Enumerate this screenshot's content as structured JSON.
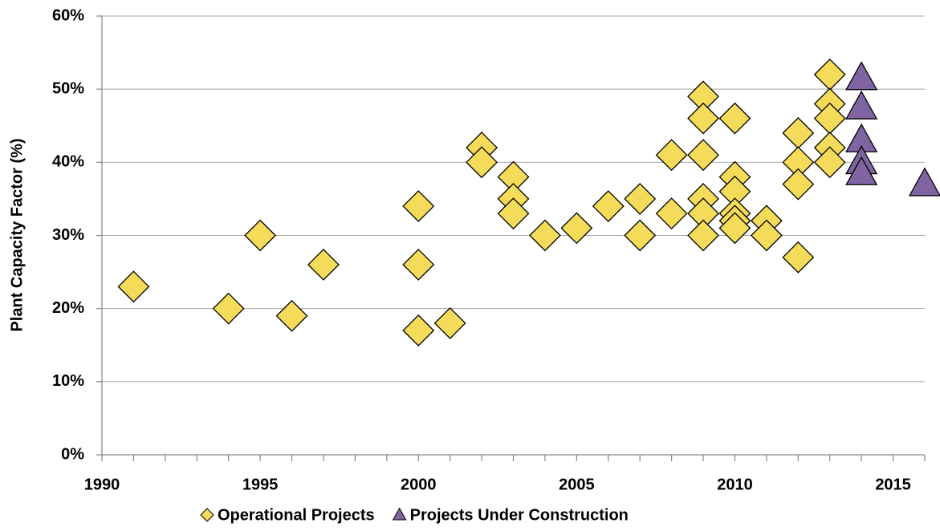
{
  "chart_data": {
    "type": "scatter",
    "y_label": "Plant Capacity Factor (%)",
    "xlim": [
      1990,
      2016
    ],
    "xticks": [
      1990,
      1995,
      2000,
      2005,
      2010,
      2015
    ],
    "xminorticks": [
      1990,
      1991,
      1992,
      1993,
      1994,
      1995,
      1996,
      1997,
      1998,
      1999,
      2000,
      2001,
      2002,
      2003,
      2004,
      2005,
      2006,
      2007,
      2008,
      2009,
      2010,
      2011,
      2012,
      2013,
      2014,
      2015,
      2016
    ],
    "ylim": [
      0,
      60
    ],
    "yticks": [
      {
        "value": 0,
        "label": "0%"
      },
      {
        "value": 10,
        "label": "10%"
      },
      {
        "value": 20,
        "label": "20%"
      },
      {
        "value": 30,
        "label": "30%"
      },
      {
        "value": 40,
        "label": "40%"
      },
      {
        "value": 50,
        "label": "50%"
      },
      {
        "value": 60,
        "label": "60%"
      }
    ],
    "grid": true,
    "legend": "bottom",
    "series": [
      {
        "name": "Operational Projects",
        "color": "#f4dc5a",
        "marker": "diamond",
        "x": [
          1991,
          1994,
          1995,
          1996,
          1997,
          2000,
          2000,
          2000,
          2001,
          2002,
          2002,
          2003,
          2003,
          2003,
          2004,
          2005,
          2006,
          2007,
          2007,
          2008,
          2008,
          2009,
          2009,
          2009,
          2009,
          2009,
          2009,
          2010,
          2010,
          2010,
          2010,
          2010,
          2010,
          2011,
          2011,
          2012,
          2012,
          2012,
          2012,
          2013,
          2013,
          2013,
          2013,
          2013
        ],
        "values": [
          23,
          20,
          30,
          19,
          26,
          34,
          26,
          17,
          18,
          42,
          40,
          38,
          35,
          33,
          30,
          31,
          34,
          35,
          30,
          41,
          33,
          49,
          46,
          41,
          35,
          33,
          30,
          46,
          38,
          36,
          33,
          32,
          31,
          32,
          30,
          44,
          40,
          37,
          27,
          52,
          48,
          46,
          42,
          40
        ]
      },
      {
        "name": "Projects Under Construction",
        "color": "#8064a2",
        "marker": "triangle",
        "x": [
          2014,
          2014,
          2014,
          2014,
          2014,
          2016
        ],
        "values": [
          51.5,
          47.5,
          43,
          40,
          38.5,
          37
        ]
      }
    ]
  }
}
